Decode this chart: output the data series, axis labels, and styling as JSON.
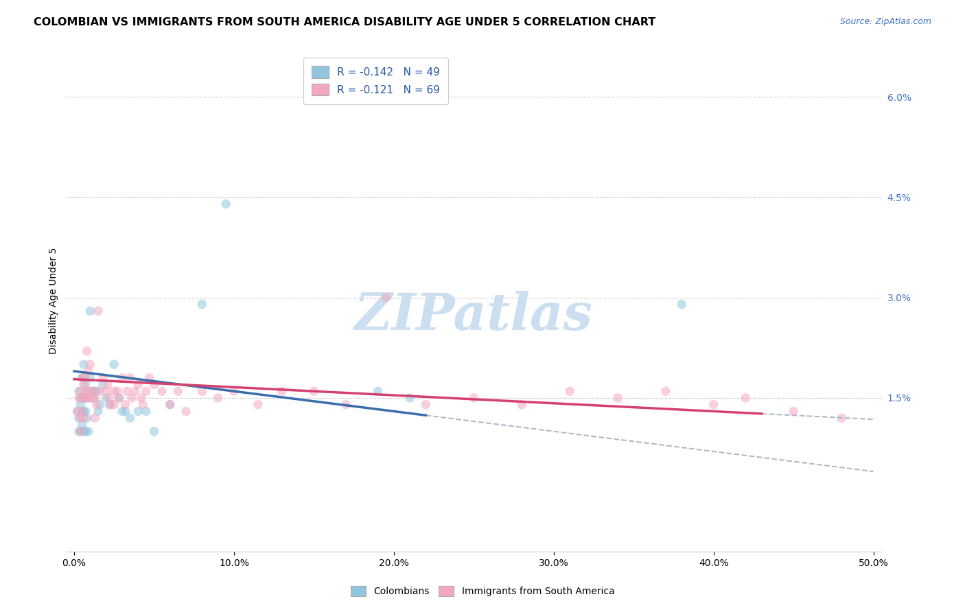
{
  "title": "COLOMBIAN VS IMMIGRANTS FROM SOUTH AMERICA DISABILITY AGE UNDER 5 CORRELATION CHART",
  "source": "Source: ZipAtlas.com",
  "ylabel": "Disability Age Under 5",
  "xlabel_ticks": [
    "0.0%",
    "10.0%",
    "20.0%",
    "30.0%",
    "40.0%",
    "50.0%"
  ],
  "xlabel_vals": [
    0.0,
    0.1,
    0.2,
    0.3,
    0.4,
    0.5
  ],
  "ylabel_ticks": [
    "1.5%",
    "3.0%",
    "4.5%",
    "6.0%"
  ],
  "ylabel_vals": [
    0.015,
    0.03,
    0.045,
    0.06
  ],
  "xlim": [
    -0.005,
    0.505
  ],
  "ylim": [
    -0.008,
    0.067
  ],
  "R_blue": -0.142,
  "N_blue": 49,
  "R_pink": -0.121,
  "N_pink": 69,
  "blue_color": "#92c5de",
  "pink_color": "#f4a8c0",
  "trendline_blue_color": "#3a6eab",
  "trendline_pink_color": "#d44070",
  "trendline_dashed_color": "#b0b8c8",
  "watermark_color": "#ccdff0",
  "title_fontsize": 11.5,
  "source_fontsize": 9,
  "axis_label_fontsize": 10,
  "tick_fontsize": 10,
  "scatter_size": 95,
  "scatter_alpha": 0.55,
  "blue_x": [
    0.002,
    0.003,
    0.003,
    0.003,
    0.004,
    0.004,
    0.004,
    0.005,
    0.005,
    0.005,
    0.005,
    0.006,
    0.006,
    0.006,
    0.006,
    0.006,
    0.007,
    0.007,
    0.007,
    0.007,
    0.008,
    0.008,
    0.009,
    0.009,
    0.01,
    0.01,
    0.011,
    0.012,
    0.013,
    0.014,
    0.015,
    0.016,
    0.018,
    0.02,
    0.022,
    0.025,
    0.028,
    0.03,
    0.032,
    0.035,
    0.04,
    0.045,
    0.05,
    0.06,
    0.08,
    0.095,
    0.19,
    0.21,
    0.38
  ],
  "blue_y": [
    0.013,
    0.016,
    0.012,
    0.01,
    0.015,
    0.014,
    0.01,
    0.018,
    0.015,
    0.013,
    0.011,
    0.02,
    0.018,
    0.015,
    0.013,
    0.01,
    0.017,
    0.015,
    0.013,
    0.01,
    0.016,
    0.012,
    0.015,
    0.01,
    0.028,
    0.018,
    0.016,
    0.015,
    0.016,
    0.016,
    0.013,
    0.014,
    0.017,
    0.015,
    0.014,
    0.02,
    0.015,
    0.013,
    0.013,
    0.012,
    0.013,
    0.013,
    0.01,
    0.014,
    0.029,
    0.044,
    0.016,
    0.015,
    0.029
  ],
  "pink_x": [
    0.002,
    0.003,
    0.004,
    0.004,
    0.004,
    0.005,
    0.005,
    0.005,
    0.006,
    0.006,
    0.006,
    0.007,
    0.007,
    0.008,
    0.008,
    0.009,
    0.009,
    0.01,
    0.01,
    0.011,
    0.012,
    0.013,
    0.013,
    0.014,
    0.015,
    0.016,
    0.018,
    0.02,
    0.021,
    0.022,
    0.023,
    0.025,
    0.025,
    0.027,
    0.028,
    0.03,
    0.032,
    0.033,
    0.035,
    0.036,
    0.038,
    0.04,
    0.042,
    0.043,
    0.045,
    0.047,
    0.05,
    0.055,
    0.06,
    0.065,
    0.07,
    0.08,
    0.09,
    0.1,
    0.115,
    0.13,
    0.15,
    0.17,
    0.195,
    0.22,
    0.25,
    0.28,
    0.31,
    0.34,
    0.37,
    0.4,
    0.42,
    0.45,
    0.48
  ],
  "pink_y": [
    0.013,
    0.015,
    0.016,
    0.012,
    0.01,
    0.018,
    0.015,
    0.013,
    0.017,
    0.015,
    0.012,
    0.018,
    0.015,
    0.022,
    0.016,
    0.019,
    0.015,
    0.02,
    0.016,
    0.015,
    0.016,
    0.015,
    0.012,
    0.014,
    0.028,
    0.016,
    0.018,
    0.016,
    0.017,
    0.015,
    0.014,
    0.016,
    0.014,
    0.016,
    0.015,
    0.018,
    0.014,
    0.016,
    0.018,
    0.015,
    0.016,
    0.017,
    0.015,
    0.014,
    0.016,
    0.018,
    0.017,
    0.016,
    0.014,
    0.016,
    0.013,
    0.016,
    0.015,
    0.016,
    0.014,
    0.016,
    0.016,
    0.014,
    0.03,
    0.014,
    0.015,
    0.014,
    0.016,
    0.015,
    0.016,
    0.014,
    0.015,
    0.013,
    0.012
  ]
}
